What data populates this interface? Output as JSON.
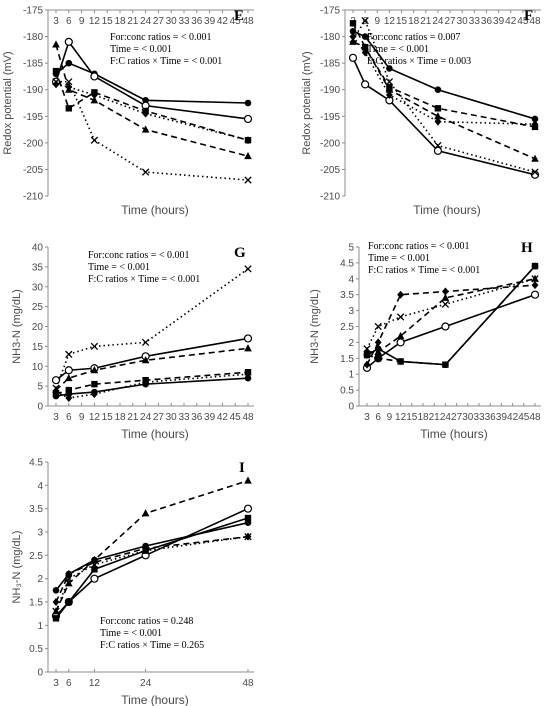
{
  "chart_data": [
    {
      "type": "line",
      "panel": "E",
      "ylabel": "Redox potential (mV)",
      "xlabel": "Time (hours)",
      "ylim": [
        -210,
        -175
      ],
      "yticks": [
        -175,
        -180,
        -185,
        -190,
        -195,
        -200,
        -205,
        -210
      ],
      "x": [
        3,
        6,
        12,
        24,
        48
      ],
      "x_tick_labels": [
        "3",
        "6",
        "9",
        "12",
        "15",
        "18",
        "21",
        "24",
        "27",
        "30",
        "33",
        "36",
        "39",
        "42",
        "45",
        "48"
      ],
      "x_ticks_at": [
        3,
        6,
        9,
        12,
        15,
        18,
        21,
        24,
        27,
        30,
        33,
        36,
        39,
        42,
        45,
        48
      ],
      "x_axis_position": "top",
      "stats": [
        "For:conc ratios = < 0.001",
        "Time = < 0.001",
        "F:C ratios  × Time = < 0.001"
      ],
      "series": [
        {
          "marker": "circle-filled",
          "line": "solid",
          "values": [
            -187,
            -185,
            -187,
            -192,
            -192.5
          ]
        },
        {
          "marker": "circle-open",
          "line": "solid",
          "values": [
            -188.5,
            -181,
            -187.5,
            -193,
            -195.5
          ]
        },
        {
          "marker": "square",
          "line": "dash",
          "values": [
            -186.5,
            -193.5,
            -190.5,
            -194,
            -199.5
          ]
        },
        {
          "marker": "triangle",
          "line": "dash",
          "values": [
            -181.5,
            -190,
            -192,
            -197.5,
            -202.5
          ]
        },
        {
          "marker": "diamond",
          "line": "dot",
          "values": [
            -189,
            -189.5,
            -191,
            -194.5,
            -199.5
          ]
        },
        {
          "marker": "x",
          "line": "dot",
          "values": [
            -188.5,
            -188.5,
            -199.5,
            -205.5,
            -207
          ]
        }
      ]
    },
    {
      "type": "line",
      "panel": "F",
      "ylabel": "Redox potential (mV)",
      "xlabel": "Time (hours)",
      "ylim": [
        -210,
        -175
      ],
      "yticks": [
        -175,
        -180,
        -185,
        -190,
        -195,
        -200,
        -205,
        -210
      ],
      "x": [
        3,
        6,
        12,
        24,
        48
      ],
      "x_tick_labels": [
        "3",
        "6",
        "9",
        "12",
        "15",
        "18",
        "21",
        "24",
        "27",
        "30",
        "33",
        "36",
        "39",
        "42",
        "45",
        "48"
      ],
      "x_ticks_at": [
        3,
        6,
        9,
        12,
        15,
        18,
        21,
        24,
        27,
        30,
        33,
        36,
        39,
        42,
        45,
        48
      ],
      "x_axis_position": "top",
      "stats": [
        "For:conc ratios = 0.007",
        "Time = < 0.001",
        "F:C ratios  × Time = 0.003"
      ],
      "series": [
        {
          "marker": "circle-filled",
          "line": "solid",
          "values": [
            -179,
            -180,
            -186,
            -190,
            -195.5
          ]
        },
        {
          "marker": "circle-open",
          "line": "solid",
          "values": [
            -184,
            -189,
            -192,
            -201.5,
            -206
          ]
        },
        {
          "marker": "square",
          "line": "dash",
          "values": [
            -177.5,
            -182,
            -189.5,
            -193.5,
            -197
          ]
        },
        {
          "marker": "triangle",
          "line": "dash",
          "values": [
            -181,
            -182,
            -190,
            -195,
            -203
          ]
        },
        {
          "marker": "diamond",
          "line": "dot",
          "values": [
            -180,
            -183,
            -191,
            -196,
            -196.5
          ]
        },
        {
          "marker": "x",
          "line": "dot",
          "values": [
            -180.5,
            -177,
            -188.5,
            -200.5,
            -205.5
          ]
        }
      ]
    },
    {
      "type": "line",
      "panel": "G",
      "ylabel": "NH3-N (mg/dL)",
      "xlabel": "Time (hours)",
      "ylim": [
        0,
        40
      ],
      "yticks": [
        0,
        5,
        10,
        15,
        20,
        25,
        30,
        35,
        40
      ],
      "x": [
        3,
        6,
        12,
        24,
        48
      ],
      "x_tick_labels": [
        "3",
        "6",
        "9",
        "12",
        "15",
        "18",
        "21",
        "24",
        "27",
        "30",
        "33",
        "36",
        "39",
        "42",
        "45",
        "48"
      ],
      "x_ticks_at": [
        3,
        6,
        9,
        12,
        15,
        18,
        21,
        24,
        27,
        30,
        33,
        36,
        39,
        42,
        45,
        48
      ],
      "x_axis_position": "bottom",
      "stats": [
        "For:conc ratios = < 0.001",
        "Time = < 0.001",
        "F:C ratios  × Time = < 0.001"
      ],
      "series": [
        {
          "marker": "circle-filled",
          "line": "solid",
          "values": [
            2.5,
            3,
            3.5,
            5.5,
            7
          ]
        },
        {
          "marker": "circle-open",
          "line": "solid",
          "values": [
            6.5,
            9,
            9.5,
            12.5,
            17
          ]
        },
        {
          "marker": "square",
          "line": "dash",
          "values": [
            3,
            4,
            5.5,
            6.5,
            8.5
          ]
        },
        {
          "marker": "triangle",
          "line": "dash",
          "values": [
            4,
            7,
            9,
            11.5,
            14.5
          ]
        },
        {
          "marker": "diamond",
          "line": "dot",
          "values": [
            3.5,
            2,
            3,
            6,
            8
          ]
        },
        {
          "marker": "x",
          "line": "dot",
          "values": [
            4.5,
            13,
            15,
            16,
            34.5
          ]
        }
      ]
    },
    {
      "type": "line",
      "panel": "H",
      "ylabel": "NH3-N (mg/dL)",
      "xlabel": "Time (hours)",
      "ylim": [
        0,
        5
      ],
      "yticks": [
        0,
        0.5,
        1,
        1.5,
        2,
        2.5,
        3,
        3.5,
        4,
        4.5,
        5
      ],
      "ytick_labels": [
        "0",
        "0.5",
        "1",
        "1.5",
        "2",
        "2.5",
        "3",
        "3.5",
        "4",
        "4.5",
        "5"
      ],
      "x": [
        3,
        6,
        12,
        24,
        48
      ],
      "x_tick_labels": [
        "3",
        "6",
        "9",
        "12",
        "15",
        "18",
        "21",
        "24",
        "27",
        "30",
        "33",
        "36",
        "39",
        "42",
        "45",
        "48"
      ],
      "x_ticks_at": [
        3,
        6,
        9,
        12,
        15,
        18,
        21,
        24,
        27,
        30,
        33,
        36,
        39,
        42,
        45,
        48
      ],
      "x_axis_position": "bottom",
      "stats": [
        "For:conc ratios = < 0.001",
        "Time = < 0.001",
        "F:C ratios  × Time = < 0.001"
      ],
      "series": [
        {
          "marker": "circle-filled",
          "line": "solid",
          "values": [
            1.6,
            1.8,
            1.4,
            1.3,
            4.4
          ]
        },
        {
          "marker": "circle-open",
          "line": "solid",
          "values": [
            1.2,
            1.5,
            2,
            2.5,
            3.5
          ]
        },
        {
          "marker": "square",
          "line": "dash",
          "values": [
            1.6,
            1.5,
            1.4,
            1.3,
            4.4
          ]
        },
        {
          "marker": "triangle",
          "line": "dash",
          "values": [
            1.7,
            1.7,
            2.2,
            3.4,
            4
          ]
        },
        {
          "marker": "diamond",
          "line": "dash",
          "values": [
            1.3,
            2,
            3.5,
            3.6,
            3.8
          ]
        },
        {
          "marker": "x",
          "line": "dot",
          "values": [
            1.8,
            2.5,
            2.8,
            3.2,
            4
          ]
        }
      ]
    },
    {
      "type": "line",
      "panel": "I",
      "ylabel": "NH₃-N (mg/dL)",
      "xlabel": "Time (hours)",
      "ylim": [
        0,
        4.5
      ],
      "yticks": [
        0,
        0.5,
        1,
        1.5,
        2,
        2.5,
        3,
        3.5,
        4,
        4.5
      ],
      "ytick_labels": [
        "0",
        "0.5",
        "1",
        "1.5",
        "2",
        "2.5",
        "3",
        "3.5",
        "4",
        "4.5"
      ],
      "x": [
        3,
        6,
        12,
        24,
        48
      ],
      "x_tick_labels": [
        "3",
        "6",
        "12",
        "24",
        "48"
      ],
      "x_ticks_at": [
        3,
        6,
        12,
        24,
        48
      ],
      "x_axis_position": "bottom",
      "stats": [
        "For:conc ratios = 0.248",
        "Time = < 0.001",
        "F:C ratios  × Time = 0.265"
      ],
      "series": [
        {
          "marker": "circle-filled",
          "line": "solid",
          "values": [
            1.75,
            2.1,
            2.4,
            2.7,
            3.2
          ]
        },
        {
          "marker": "circle-open",
          "line": "solid",
          "values": [
            1.2,
            1.5,
            2,
            2.5,
            3.5
          ]
        },
        {
          "marker": "square",
          "line": "solid",
          "values": [
            1.15,
            1.5,
            2.2,
            2.6,
            3.3
          ]
        },
        {
          "marker": "triangle",
          "line": "dash",
          "values": [
            1.3,
            1.9,
            2.4,
            3.4,
            4.1
          ]
        },
        {
          "marker": "diamond",
          "line": "dash",
          "values": [
            1.5,
            2.1,
            2.35,
            2.65,
            2.9
          ]
        },
        {
          "marker": "x",
          "line": "dot",
          "values": [
            1.3,
            2,
            2.3,
            2.6,
            2.9
          ]
        }
      ]
    }
  ],
  "colors": {
    "axis": "#8c8c8c",
    "text": "#4a4a4a",
    "series": "#000000",
    "background": "#ffffff"
  }
}
